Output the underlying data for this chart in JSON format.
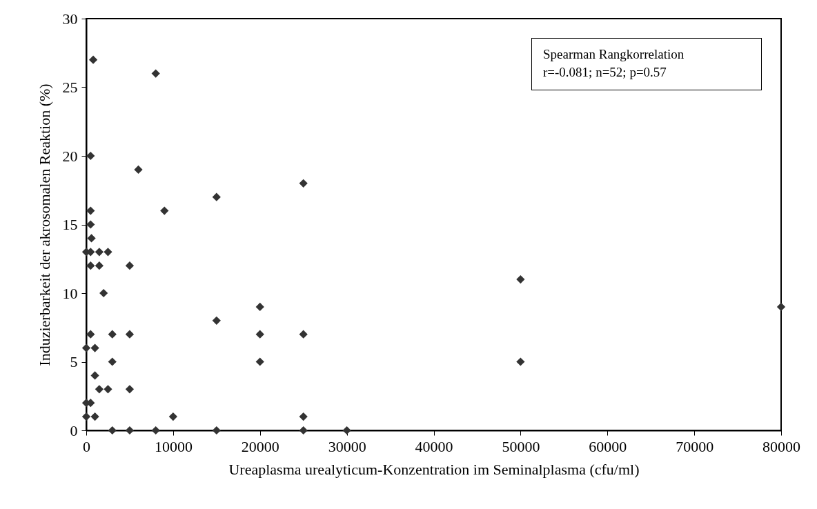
{
  "chart_data": {
    "type": "scatter",
    "xlabel": "Ureaplasma urealyticum-Konzentration im Seminalplasma (cfu/ml)",
    "ylabel": "Induzierbarkeit der akrosomalen Reaktion (%)",
    "annotations": [
      "Spearman Rangkorrelation",
      "r=-0.081; n=52; p=0.57"
    ],
    "x": [
      800,
      8000,
      500,
      6000,
      15000,
      9000,
      500,
      500,
      600,
      0,
      500,
      1500,
      2500,
      500,
      1500,
      5000,
      2000,
      500,
      3000,
      5000,
      15000,
      0,
      1000,
      3000,
      1000,
      1500,
      2500,
      5000,
      0,
      500,
      0,
      1000,
      10000,
      3000,
      5000,
      8000,
      15000,
      20000,
      20000,
      20000,
      25000,
      25000,
      25000,
      25000,
      30000,
      50000,
      50000,
      80000
    ],
    "series": [
      {
        "color": "#333333",
        "values": [
          27,
          26,
          20,
          19,
          17,
          16,
          16,
          15,
          14,
          13,
          13,
          13,
          13,
          12,
          12,
          12,
          10,
          7,
          7,
          7,
          8,
          6,
          6,
          5,
          4,
          3,
          3,
          3,
          2,
          2,
          1,
          1,
          1,
          0,
          0,
          0,
          0,
          9,
          7,
          5,
          18,
          7,
          1,
          0,
          0,
          11,
          5,
          9
        ]
      }
    ],
    "xlim": [
      0,
      80000
    ],
    "xticks": [
      0,
      10000,
      20000,
      30000,
      40000,
      50000,
      60000,
      70000,
      80000
    ],
    "ylim": [
      0,
      30
    ],
    "yticks": [
      0,
      5,
      10,
      15,
      20,
      25,
      30
    ],
    "grid": false,
    "marker": "diamond"
  }
}
